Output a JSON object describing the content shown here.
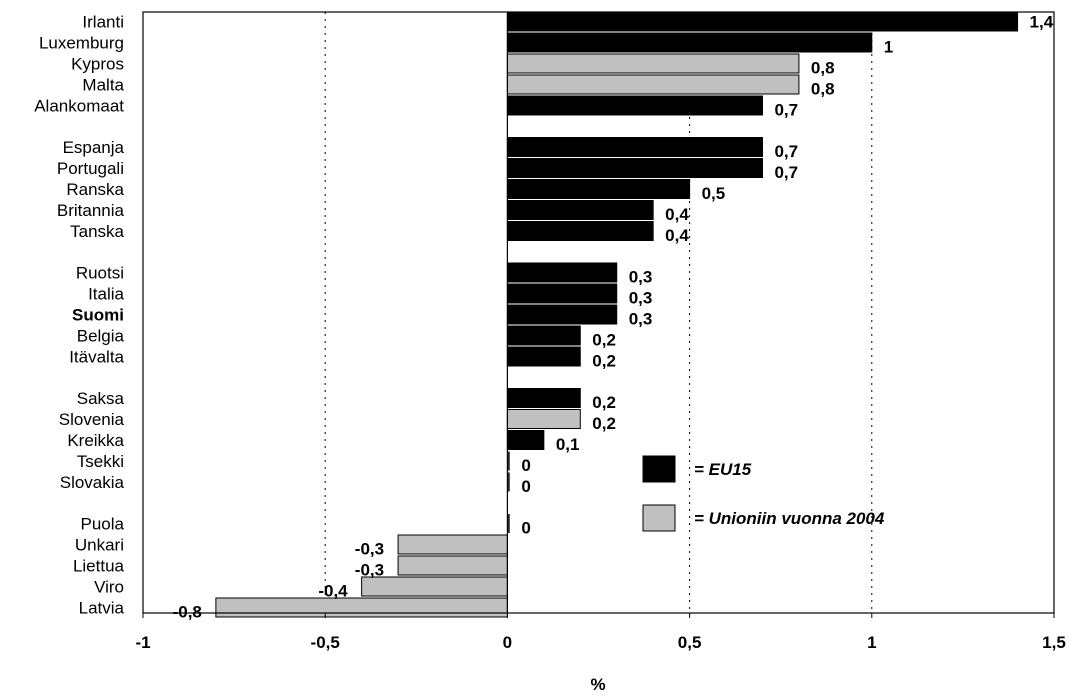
{
  "chart_data": {
    "type": "bar",
    "orientation": "horizontal",
    "xlabel": "%",
    "xlim": [
      -1,
      1.5
    ],
    "xticks": [
      -1,
      -0.5,
      0,
      0.5,
      1,
      1.5
    ],
    "xtick_labels": [
      "-1",
      "-0,5",
      "0",
      "0,5",
      "1",
      "1,5"
    ],
    "grid": "vertical dotted",
    "legend": {
      "position": "right-center",
      "entries": [
        {
          "label": "= EU15",
          "color": "#000000"
        },
        {
          "label": "= Unioniin vuonna 2004",
          "color": "#c0c0c0"
        }
      ]
    },
    "bars": [
      {
        "category": "Irlanti",
        "value": 1.4,
        "label": "1,4",
        "group": "EU15"
      },
      {
        "category": "Luxemburg",
        "value": 1,
        "label": "1",
        "group": "EU15"
      },
      {
        "category": "Kypros",
        "value": 0.8,
        "label": "0,8",
        "group": "2004"
      },
      {
        "category": "Malta",
        "value": 0.8,
        "label": "0,8",
        "group": "2004"
      },
      {
        "category": "Alankomaat",
        "value": 0.7,
        "label": "0,7",
        "group": "EU15"
      },
      {
        "category": "Espanja",
        "value": 0.7,
        "label": "0,7",
        "group": "EU15"
      },
      {
        "category": "Portugali",
        "value": 0.7,
        "label": "0,7",
        "group": "EU15"
      },
      {
        "category": "Ranska",
        "value": 0.5,
        "label": "0,5",
        "group": "EU15"
      },
      {
        "category": "Britannia",
        "value": 0.4,
        "label": "0,4",
        "group": "EU15"
      },
      {
        "category": "Tanska",
        "value": 0.4,
        "label": "0,4",
        "group": "EU15"
      },
      {
        "category": "Ruotsi",
        "value": 0.3,
        "label": "0,3",
        "group": "EU15"
      },
      {
        "category": "Italia",
        "value": 0.3,
        "label": "0,3",
        "group": "EU15"
      },
      {
        "category": "Suomi",
        "value": 0.3,
        "label": "0,3",
        "group": "EU15",
        "bold": true
      },
      {
        "category": "Belgia",
        "value": 0.2,
        "label": "0,2",
        "group": "EU15"
      },
      {
        "category": "Itävalta",
        "value": 0.2,
        "label": "0,2",
        "group": "EU15"
      },
      {
        "category": "Saksa",
        "value": 0.2,
        "label": "0,2",
        "group": "EU15"
      },
      {
        "category": "Slovenia",
        "value": 0.2,
        "label": "0,2",
        "group": "2004"
      },
      {
        "category": "Kreikka",
        "value": 0.1,
        "label": "0,1",
        "group": "EU15"
      },
      {
        "category": "Tsekki",
        "value": 0,
        "label": "0",
        "group": "2004"
      },
      {
        "category": "Slovakia",
        "value": 0,
        "label": "0",
        "group": "2004"
      },
      {
        "category": "Puola",
        "value": 0,
        "label": "0",
        "group": "2004"
      },
      {
        "category": "Unkari",
        "value": -0.3,
        "label": "-0,3",
        "group": "2004"
      },
      {
        "category": "Liettua",
        "value": -0.3,
        "label": "-0,3",
        "group": "2004"
      },
      {
        "category": "Viro",
        "value": -0.4,
        "label": "-0,4",
        "group": "2004"
      },
      {
        "category": "Latvia",
        "value": -0.8,
        "label": "-0,8",
        "group": "2004"
      }
    ]
  }
}
